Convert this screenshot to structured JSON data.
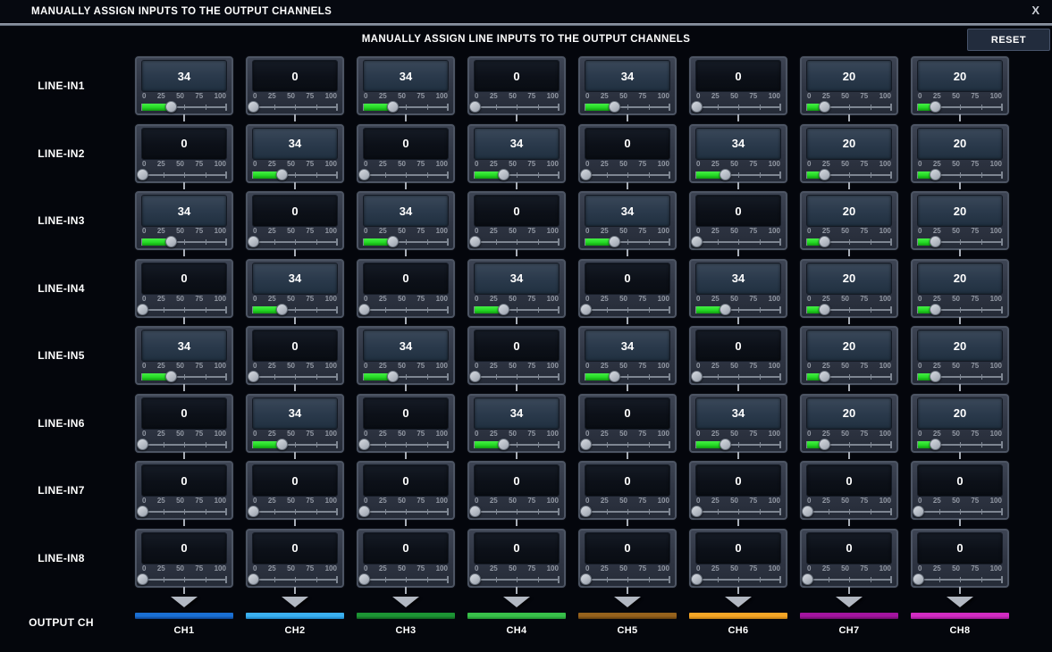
{
  "window": {
    "title": "MANUALLY ASSIGN INPUTS TO THE OUTPUT CHANNELS",
    "close_label": "X"
  },
  "header": {
    "subtitle": "MANUALLY ASSIGN LINE INPUTS TO THE OUTPUT CHANNELS",
    "reset_label": "RESET"
  },
  "slider_scale": [
    "0",
    "25",
    "50",
    "75",
    "100"
  ],
  "rows": [
    {
      "label": "LINE-IN1",
      "values": [
        34,
        0,
        34,
        0,
        34,
        0,
        20,
        20
      ]
    },
    {
      "label": "LINE-IN2",
      "values": [
        0,
        34,
        0,
        34,
        0,
        34,
        20,
        20
      ]
    },
    {
      "label": "LINE-IN3",
      "values": [
        34,
        0,
        34,
        0,
        34,
        0,
        20,
        20
      ]
    },
    {
      "label": "LINE-IN4",
      "values": [
        0,
        34,
        0,
        34,
        0,
        34,
        20,
        20
      ]
    },
    {
      "label": "LINE-IN5",
      "values": [
        34,
        0,
        34,
        0,
        34,
        0,
        20,
        20
      ]
    },
    {
      "label": "LINE-IN6",
      "values": [
        0,
        34,
        0,
        34,
        0,
        34,
        20,
        20
      ]
    },
    {
      "label": "LINE-IN7",
      "values": [
        0,
        0,
        0,
        0,
        0,
        0,
        0,
        0
      ]
    },
    {
      "label": "LINE-IN8",
      "values": [
        0,
        0,
        0,
        0,
        0,
        0,
        0,
        0
      ]
    }
  ],
  "output": {
    "label": "OUTPUT CH",
    "channels": [
      {
        "label": "CH1",
        "color": "#1a6fd4",
        "color_dark": "#0c418c"
      },
      {
        "label": "CH2",
        "color": "#3bb0f0",
        "color_dark": "#1a7fc0"
      },
      {
        "label": "CH3",
        "color": "#1c9434",
        "color_dark": "#0f5c1e"
      },
      {
        "label": "CH4",
        "color": "#38c04a",
        "color_dark": "#1f8c30"
      },
      {
        "label": "CH5",
        "color": "#96621c",
        "color_dark": "#5f3c0e"
      },
      {
        "label": "CH6",
        "color": "#f5a526",
        "color_dark": "#bd7a12"
      },
      {
        "label": "CH7",
        "color": "#a414a0",
        "color_dark": "#6c0c68"
      },
      {
        "label": "CH8",
        "color": "#d22cc2",
        "color_dark": "#9a1690"
      }
    ]
  },
  "colors": {
    "slider_fill_bright": "#46f046",
    "slider_fill": "#24da24",
    "slider_fill_dark": "#129a12",
    "reset_button_bg": "#222c3d",
    "cell_border": "#4d5564"
  }
}
